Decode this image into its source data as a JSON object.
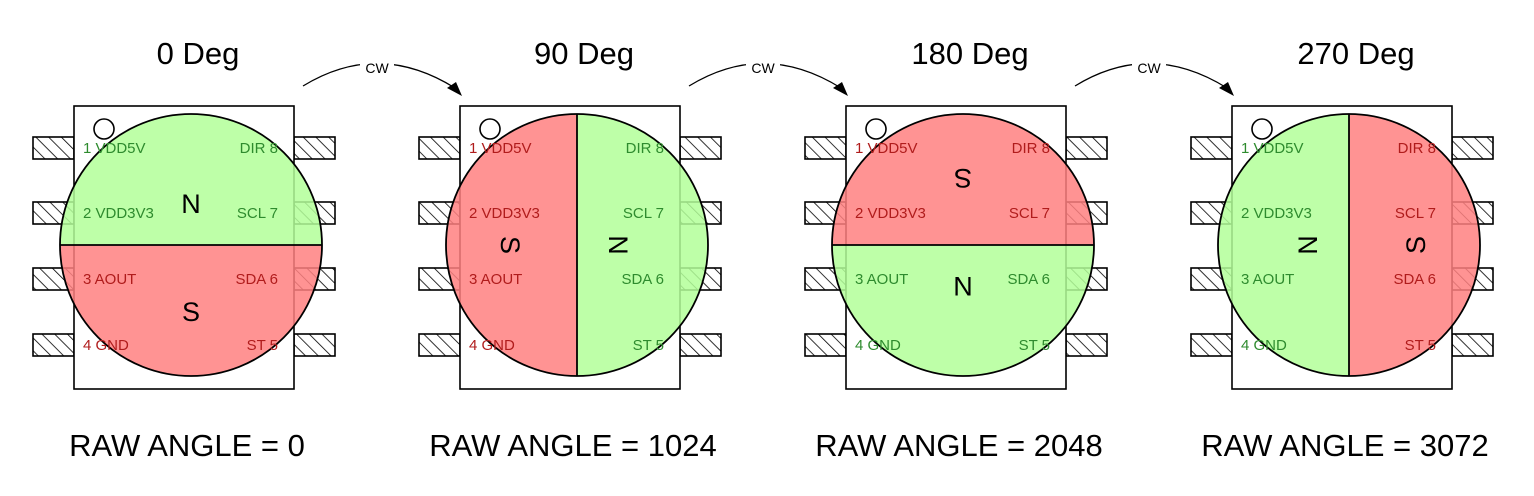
{
  "colors": {
    "north": "#b3ff99",
    "south": "#ff8080",
    "north_text": "#2e8b2e",
    "south_text": "#b01c1c"
  },
  "arrow_label": "CW",
  "pin_labels": {
    "left": [
      "1 VDD5V",
      "2 VDD3V3",
      "3 AOUT",
      "4 GND"
    ],
    "right": [
      "DIR 8",
      "SCL 7",
      "SDA 6",
      "ST 5"
    ]
  },
  "pole_labels": {
    "north": "N",
    "south": "S"
  },
  "panels": [
    {
      "title": "0 Deg",
      "raw_angle_text": "RAW ANGLE = 0",
      "rotation_deg": 0
    },
    {
      "title": "90 Deg",
      "raw_angle_text": "RAW ANGLE = 1024",
      "rotation_deg": 90
    },
    {
      "title": "180 Deg",
      "raw_angle_text": "RAW ANGLE = 2048",
      "rotation_deg": 180
    },
    {
      "title": "270 Deg",
      "raw_angle_text": "RAW ANGLE = 3072",
      "rotation_deg": 270
    }
  ]
}
